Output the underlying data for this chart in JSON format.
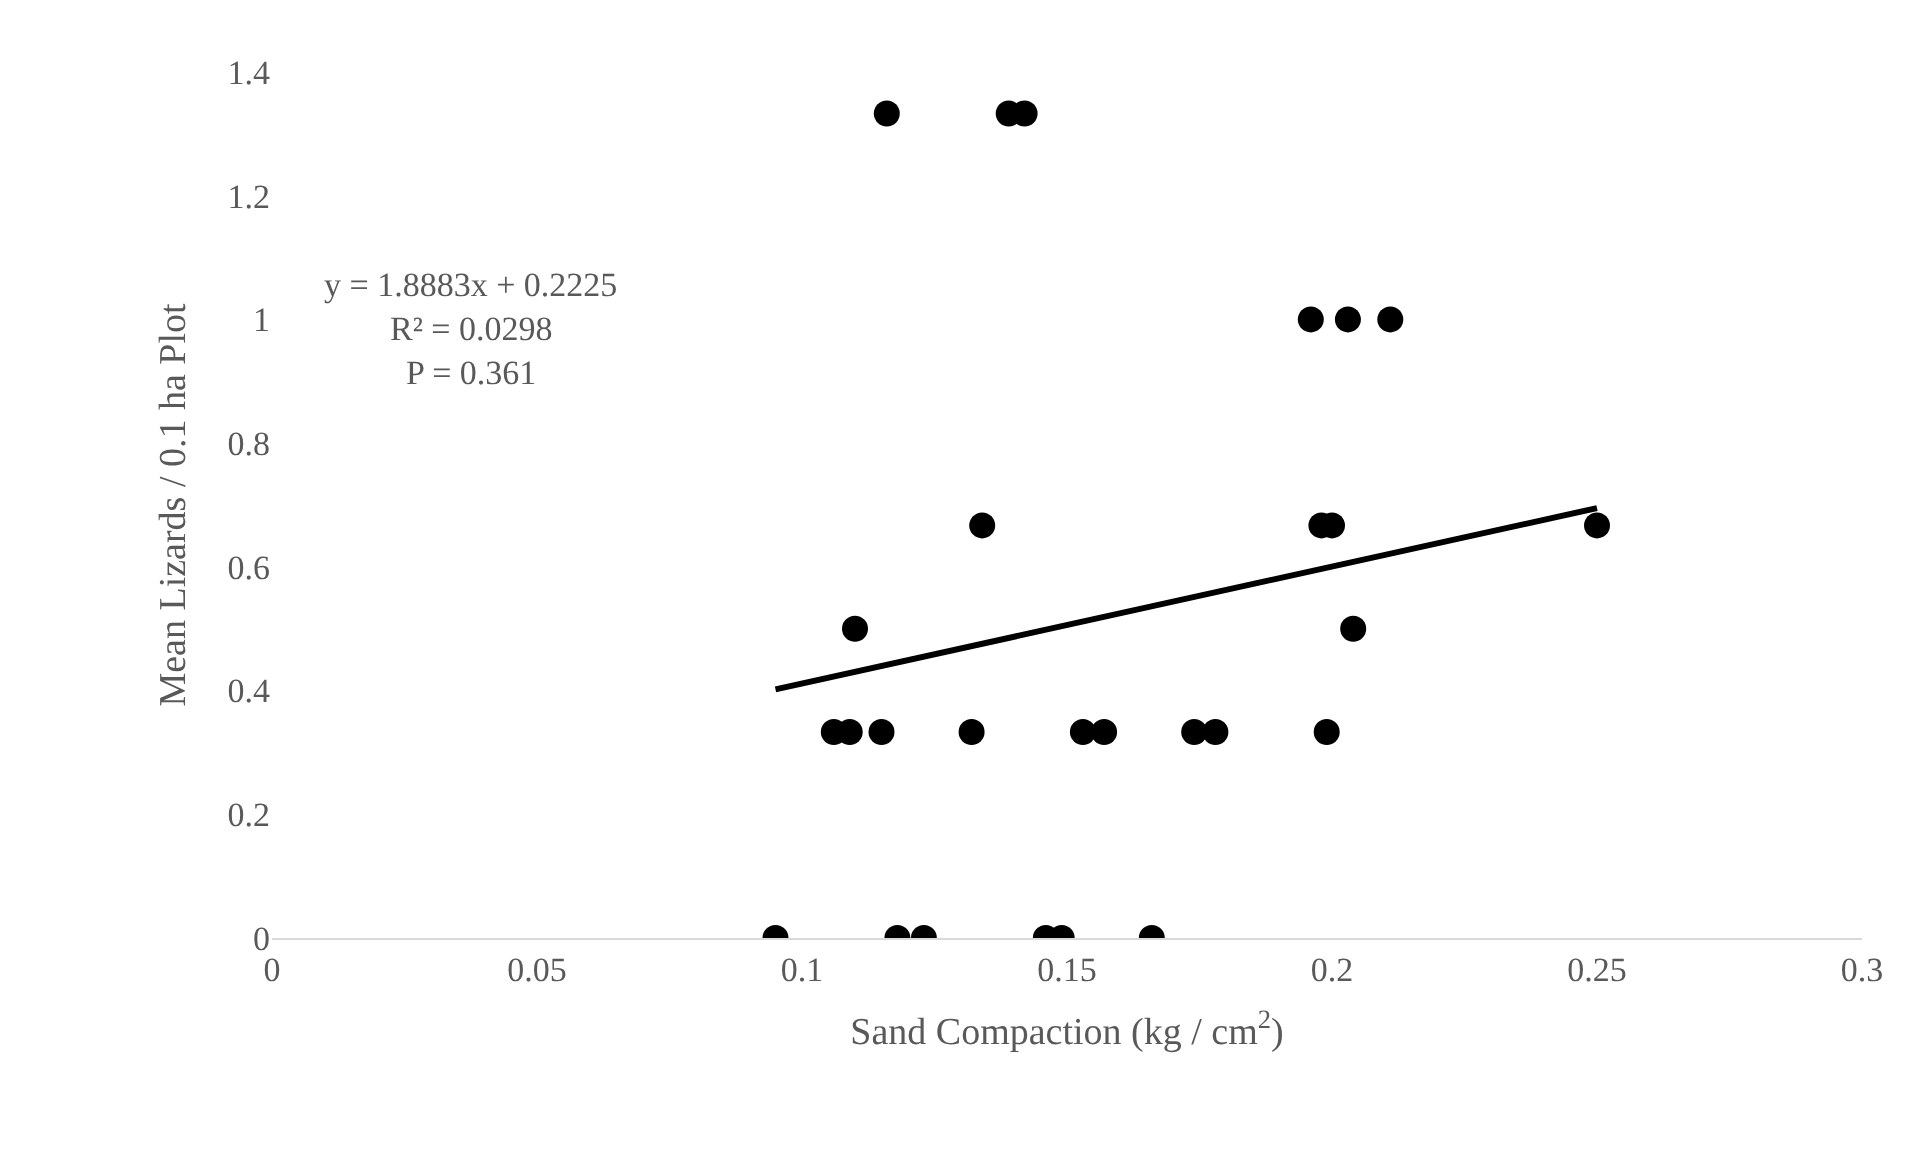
{
  "chart_data": {
    "type": "scatter",
    "xlabel": "Sand Compaction (kg / cm$^{2}$)",
    "ylabel": "Mean Lizards / 0.1 ha Plot",
    "annotations": [
      "y = 1.8883x + 0.2225",
      "R² = 0.0298",
      "P = 0.361"
    ],
    "xlim": [
      0,
      0.3
    ],
    "xticks": [
      0,
      0.05,
      0.1,
      0.15,
      0.2,
      0.25,
      0.3
    ],
    "ylim": [
      0,
      1.4
    ],
    "yticks": [
      0,
      0.2,
      0.4,
      0.6,
      0.8,
      1,
      1.2,
      1.4
    ],
    "marker": "circle",
    "series": [
      {
        "color": "#000000",
        "x": [
          0.095,
          0.118,
          0.123,
          0.146,
          0.149,
          0.166,
          0.106,
          0.109,
          0.115,
          0.132,
          0.153,
          0.157,
          0.174,
          0.178,
          0.199,
          0.11,
          0.204,
          0.134,
          0.198,
          0.2,
          0.25,
          0.196,
          0.203,
          0.211,
          0.116,
          0.139,
          0.142
        ],
        "values": [
          0,
          0,
          0,
          0,
          0,
          0,
          0.333,
          0.333,
          0.333,
          0.333,
          0.333,
          0.333,
          0.333,
          0.333,
          0.333,
          0.5,
          0.5,
          0.667,
          0.667,
          0.667,
          0.667,
          1,
          1,
          1,
          1.333,
          1.333,
          1.333
        ]
      },
      {
        "type": "line",
        "marker": "none",
        "color": "#000000",
        "x": [
          0.095,
          0.25
        ],
        "values": [
          0.402,
          0.695
        ]
      }
    ]
  }
}
